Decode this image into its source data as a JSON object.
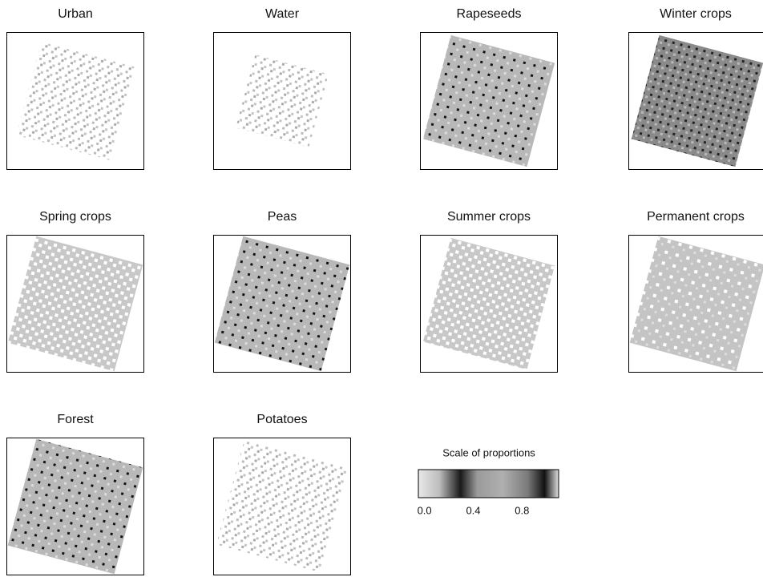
{
  "panels": [
    {
      "title": "Urban"
    },
    {
      "title": "Water"
    },
    {
      "title": "Rapeseeds"
    },
    {
      "title": "Winter crops"
    },
    {
      "title": "Spring crops"
    },
    {
      "title": "Peas"
    },
    {
      "title": "Summer crops"
    },
    {
      "title": "Permanent crops"
    },
    {
      "title": "Forest"
    },
    {
      "title": "Potatoes"
    }
  ],
  "legend": {
    "title": "Scale of proportions",
    "ticks": [
      {
        "value": 0,
        "label": "0.0"
      },
      {
        "value": 0.4,
        "label": "0.4"
      },
      {
        "value": 0.8,
        "label": "0.8"
      }
    ],
    "range": [
      -0.05,
      1.1
    ]
  }
}
